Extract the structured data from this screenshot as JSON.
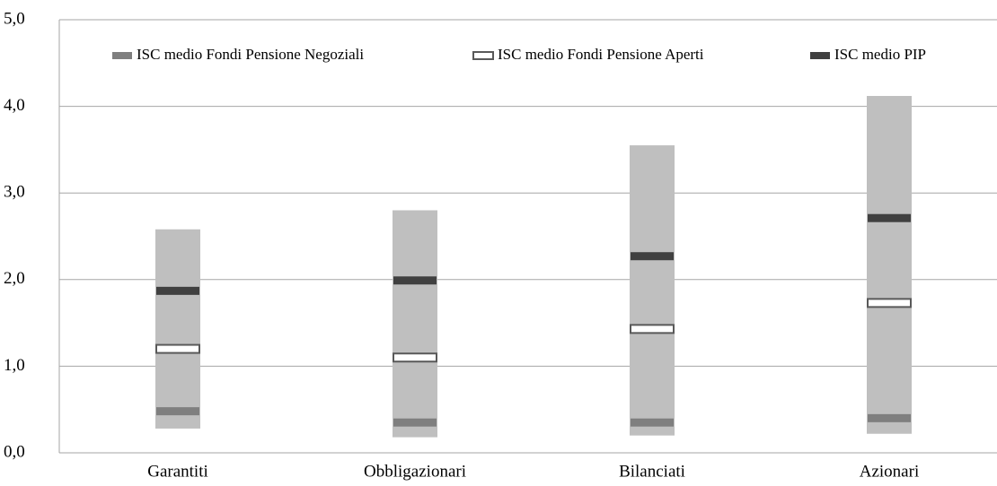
{
  "chart_data": {
    "type": "range_marker",
    "categories": [
      "Garantiti",
      "Obbligazionari",
      "Bilanciati",
      "Azionari"
    ],
    "range": {
      "color": "#bfbfbf",
      "low": [
        0.28,
        0.18,
        0.2,
        0.22
      ],
      "high": [
        2.58,
        2.8,
        3.55,
        4.12
      ]
    },
    "series": [
      {
        "name": "ISC medio Fondi Pensione Negoziali",
        "color": "#7f7f7f",
        "values": [
          0.48,
          0.35,
          0.35,
          0.4
        ]
      },
      {
        "name": "ISC medio Fondi Pensione Aperti",
        "color": "#ffffff",
        "values": [
          1.2,
          1.1,
          1.43,
          1.73
        ]
      },
      {
        "name": "ISC medio PIP",
        "color": "#404040",
        "values": [
          1.87,
          1.99,
          2.27,
          2.71
        ]
      }
    ],
    "ylim": [
      0,
      5
    ],
    "yticks": [
      {
        "value": 0,
        "label": "0,0"
      },
      {
        "value": 1,
        "label": "1,0"
      },
      {
        "value": 2,
        "label": "2,0"
      },
      {
        "value": 3,
        "label": "3,0"
      },
      {
        "value": 4,
        "label": "4,0"
      },
      {
        "value": 5,
        "label": "5,0"
      }
    ],
    "grid": true,
    "legend": "top"
  }
}
